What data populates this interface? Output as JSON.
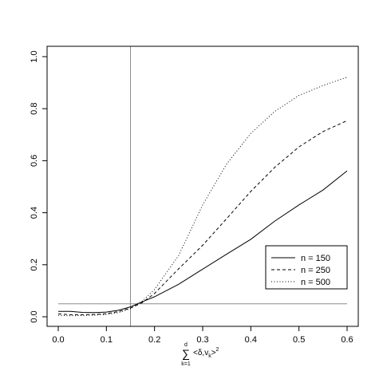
{
  "chart_data": {
    "type": "line",
    "xlim": [
      0.0,
      0.6
    ],
    "ylim": [
      0.0,
      1.0
    ],
    "x_ticks": [
      "0.0",
      "0.1",
      "0.2",
      "0.3",
      "0.4",
      "0.5",
      "0.6"
    ],
    "y_ticks": [
      "0.0",
      "0.2",
      "0.4",
      "0.6",
      "0.8",
      "1.0"
    ],
    "xlabel": {
      "sum_upper": "d",
      "sum_symbol": "∑",
      "sum_lower": "k=1",
      "lt": "<",
      "delta": "δ",
      "comma": ",",
      "v": "v",
      "v_sub": "k",
      "gt": ">",
      "power": "2"
    },
    "ylabel": "",
    "grid": false,
    "legend_position": "right",
    "reference_lines": {
      "vertical_x": 0.15,
      "horizontal_y": 0.05,
      "color": "#8c8c8c"
    },
    "series": [
      {
        "name": "n = 150",
        "dash": "solid",
        "x": [
          0.0,
          0.025,
          0.05,
          0.075,
          0.1,
          0.125,
          0.15,
          0.175,
          0.2,
          0.25,
          0.3,
          0.35,
          0.4,
          0.45,
          0.5,
          0.55,
          0.6
        ],
        "values": [
          0.021,
          0.021,
          0.017,
          0.016,
          0.018,
          0.025,
          0.038,
          0.058,
          0.077,
          0.125,
          0.183,
          0.241,
          0.298,
          0.368,
          0.43,
          0.487,
          0.561
        ]
      },
      {
        "name": "n = 250",
        "dash": "dashed",
        "x": [
          0.0,
          0.025,
          0.05,
          0.075,
          0.1,
          0.125,
          0.15,
          0.175,
          0.2,
          0.25,
          0.3,
          0.35,
          0.4,
          0.45,
          0.5,
          0.55,
          0.6
        ],
        "values": [
          0.011,
          0.008,
          0.008,
          0.009,
          0.012,
          0.02,
          0.033,
          0.055,
          0.09,
          0.184,
          0.275,
          0.378,
          0.482,
          0.575,
          0.653,
          0.712,
          0.754
        ]
      },
      {
        "name": "n = 500",
        "dash": "dotted",
        "x": [
          0.0,
          0.025,
          0.05,
          0.075,
          0.1,
          0.125,
          0.15,
          0.175,
          0.2,
          0.25,
          0.3,
          0.35,
          0.4,
          0.45,
          0.5,
          0.55,
          0.6
        ],
        "values": [
          0.005,
          0.004,
          0.005,
          0.006,
          0.009,
          0.016,
          0.031,
          0.061,
          0.105,
          0.235,
          0.43,
          0.588,
          0.705,
          0.79,
          0.851,
          0.889,
          0.921
        ]
      }
    ]
  }
}
